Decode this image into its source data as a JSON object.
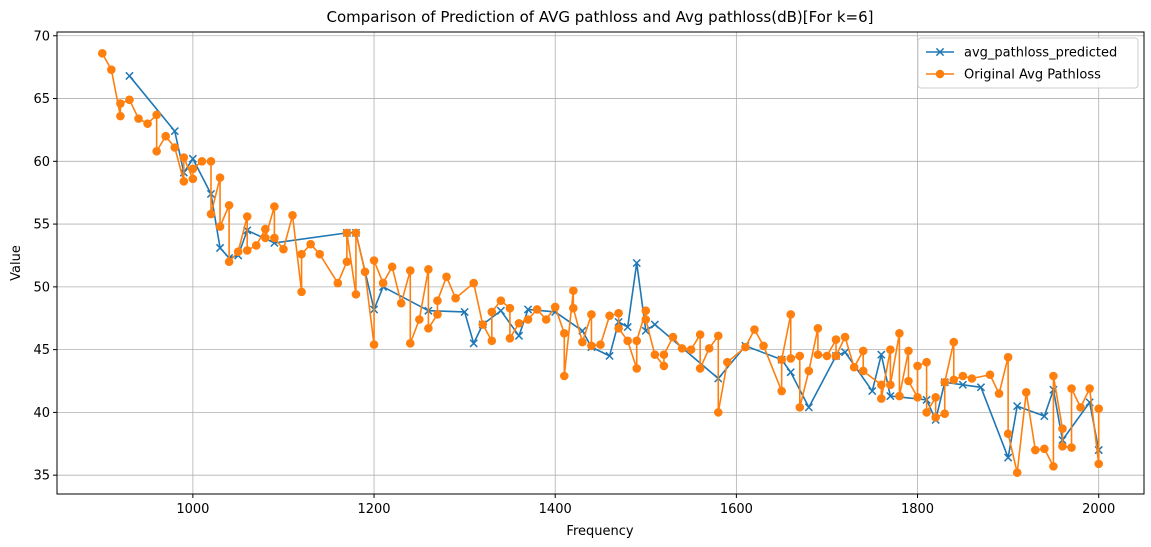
{
  "chart_data": {
    "type": "line",
    "title": "Comparison of Prediction of AVG pathloss and Avg pathloss(dB)[For k=6]",
    "xlabel": "Frequency",
    "ylabel": "Value",
    "xlim": [
      850,
      2050
    ],
    "ylim": [
      33.5,
      70.3
    ],
    "xticks": [
      1000,
      1200,
      1400,
      1600,
      1800,
      2000
    ],
    "yticks": [
      35,
      40,
      45,
      50,
      55,
      60,
      65,
      70
    ],
    "grid": true,
    "legend_position": "top-right",
    "series": [
      {
        "name": "avg_pathloss_predicted",
        "color": "#1f77b4",
        "marker": "x",
        "x": [
          930,
          980,
          990,
          1000,
          1020,
          1030,
          1040,
          1050,
          1060,
          1090,
          1170,
          1180,
          1200,
          1210,
          1260,
          1300,
          1310,
          1320,
          1340,
          1360,
          1370,
          1400,
          1430,
          1440,
          1460,
          1470,
          1480,
          1490,
          1500,
          1510,
          1580,
          1610,
          1650,
          1660,
          1680,
          1710,
          1720,
          1750,
          1760,
          1770,
          1810,
          1820,
          1830,
          1850,
          1870,
          1900,
          1910,
          1940,
          1950,
          1960,
          1990,
          2000
        ],
        "y": [
          66.8,
          62.4,
          59.1,
          60.2,
          57.4,
          53.1,
          52.3,
          52.5,
          54.5,
          53.5,
          54.3,
          54.3,
          48.2,
          50.0,
          48.1,
          48.0,
          45.5,
          47.0,
          48.1,
          46.1,
          48.2,
          48.0,
          46.5,
          45.2,
          44.5,
          47.2,
          46.8,
          51.9,
          46.5,
          47.0,
          42.7,
          45.3,
          44.2,
          43.2,
          40.4,
          44.5,
          44.8,
          41.7,
          44.6,
          41.3,
          41.0,
          39.4,
          42.4,
          42.2,
          42.0,
          36.4,
          40.5,
          39.7,
          41.8,
          37.8,
          40.8,
          37.0
        ]
      },
      {
        "name": "Original Avg Pathloss",
        "color": "#ff7f0e",
        "marker": "o",
        "x": [
          900,
          910,
          920,
          920,
          930,
          940,
          950,
          960,
          960,
          970,
          980,
          990,
          990,
          1000,
          1000,
          1010,
          1020,
          1020,
          1030,
          1030,
          1040,
          1040,
          1050,
          1060,
          1060,
          1070,
          1080,
          1080,
          1090,
          1090,
          1100,
          1110,
          1120,
          1120,
          1130,
          1140,
          1160,
          1170,
          1170,
          1180,
          1180,
          1190,
          1200,
          1200,
          1210,
          1220,
          1230,
          1240,
          1240,
          1250,
          1260,
          1260,
          1270,
          1270,
          1280,
          1290,
          1310,
          1320,
          1330,
          1330,
          1340,
          1350,
          1350,
          1360,
          1370,
          1380,
          1390,
          1400,
          1410,
          1410,
          1420,
          1420,
          1430,
          1440,
          1440,
          1450,
          1460,
          1470,
          1470,
          1480,
          1490,
          1490,
          1500,
          1500,
          1510,
          1520,
          1520,
          1530,
          1540,
          1550,
          1560,
          1560,
          1570,
          1580,
          1580,
          1590,
          1610,
          1620,
          1630,
          1650,
          1650,
          1660,
          1660,
          1670,
          1670,
          1680,
          1690,
          1690,
          1700,
          1710,
          1710,
          1720,
          1730,
          1740,
          1740,
          1760,
          1760,
          1770,
          1770,
          1780,
          1780,
          1790,
          1790,
          1800,
          1800,
          1810,
          1810,
          1820,
          1820,
          1830,
          1830,
          1840,
          1840,
          1850,
          1860,
          1880,
          1890,
          1900,
          1900,
          1910,
          1920,
          1930,
          1940,
          1950,
          1950,
          1960,
          1960,
          1970,
          1970,
          1980,
          1990,
          2000,
          2000
        ],
        "y": [
          68.6,
          67.3,
          63.6,
          64.6,
          64.9,
          63.4,
          63.0,
          63.7,
          60.8,
          62.0,
          61.1,
          58.4,
          60.3,
          58.6,
          59.4,
          60.0,
          60.0,
          55.8,
          58.7,
          54.8,
          56.5,
          52.0,
          52.8,
          55.6,
          52.9,
          53.3,
          54.6,
          53.9,
          56.4,
          53.9,
          53.0,
          55.7,
          49.6,
          52.6,
          53.4,
          52.6,
          50.3,
          52.0,
          54.3,
          49.4,
          54.3,
          51.2,
          45.4,
          52.1,
          50.3,
          51.6,
          48.7,
          51.3,
          45.5,
          47.4,
          51.4,
          46.7,
          47.8,
          48.9,
          50.8,
          49.1,
          50.3,
          47.0,
          45.7,
          48.0,
          48.9,
          48.3,
          45.9,
          47.1,
          47.4,
          48.2,
          47.4,
          48.4,
          46.3,
          42.9,
          49.7,
          48.3,
          45.6,
          47.8,
          45.3,
          45.4,
          47.7,
          47.9,
          46.7,
          45.7,
          43.5,
          45.7,
          48.1,
          47.4,
          44.6,
          43.7,
          44.6,
          46.0,
          45.1,
          45.0,
          46.2,
          43.5,
          45.1,
          46.1,
          40.0,
          44.0,
          45.2,
          46.6,
          45.3,
          41.7,
          44.2,
          47.8,
          44.3,
          44.5,
          40.4,
          43.3,
          46.7,
          44.6,
          44.5,
          45.8,
          44.5,
          46.0,
          43.6,
          44.9,
          43.3,
          42.2,
          41.1,
          45.0,
          42.2,
          46.3,
          41.3,
          44.9,
          42.5,
          41.2,
          43.7,
          44.0,
          40.0,
          41.2,
          39.6,
          39.9,
          42.4,
          45.6,
          42.6,
          42.9,
          42.7,
          43.0,
          41.5,
          44.4,
          38.3,
          35.2,
          41.6,
          37.0,
          37.1,
          35.7,
          42.9,
          38.7,
          37.3,
          37.2,
          41.9,
          40.4,
          41.9,
          35.9,
          40.3
        ]
      }
    ]
  }
}
